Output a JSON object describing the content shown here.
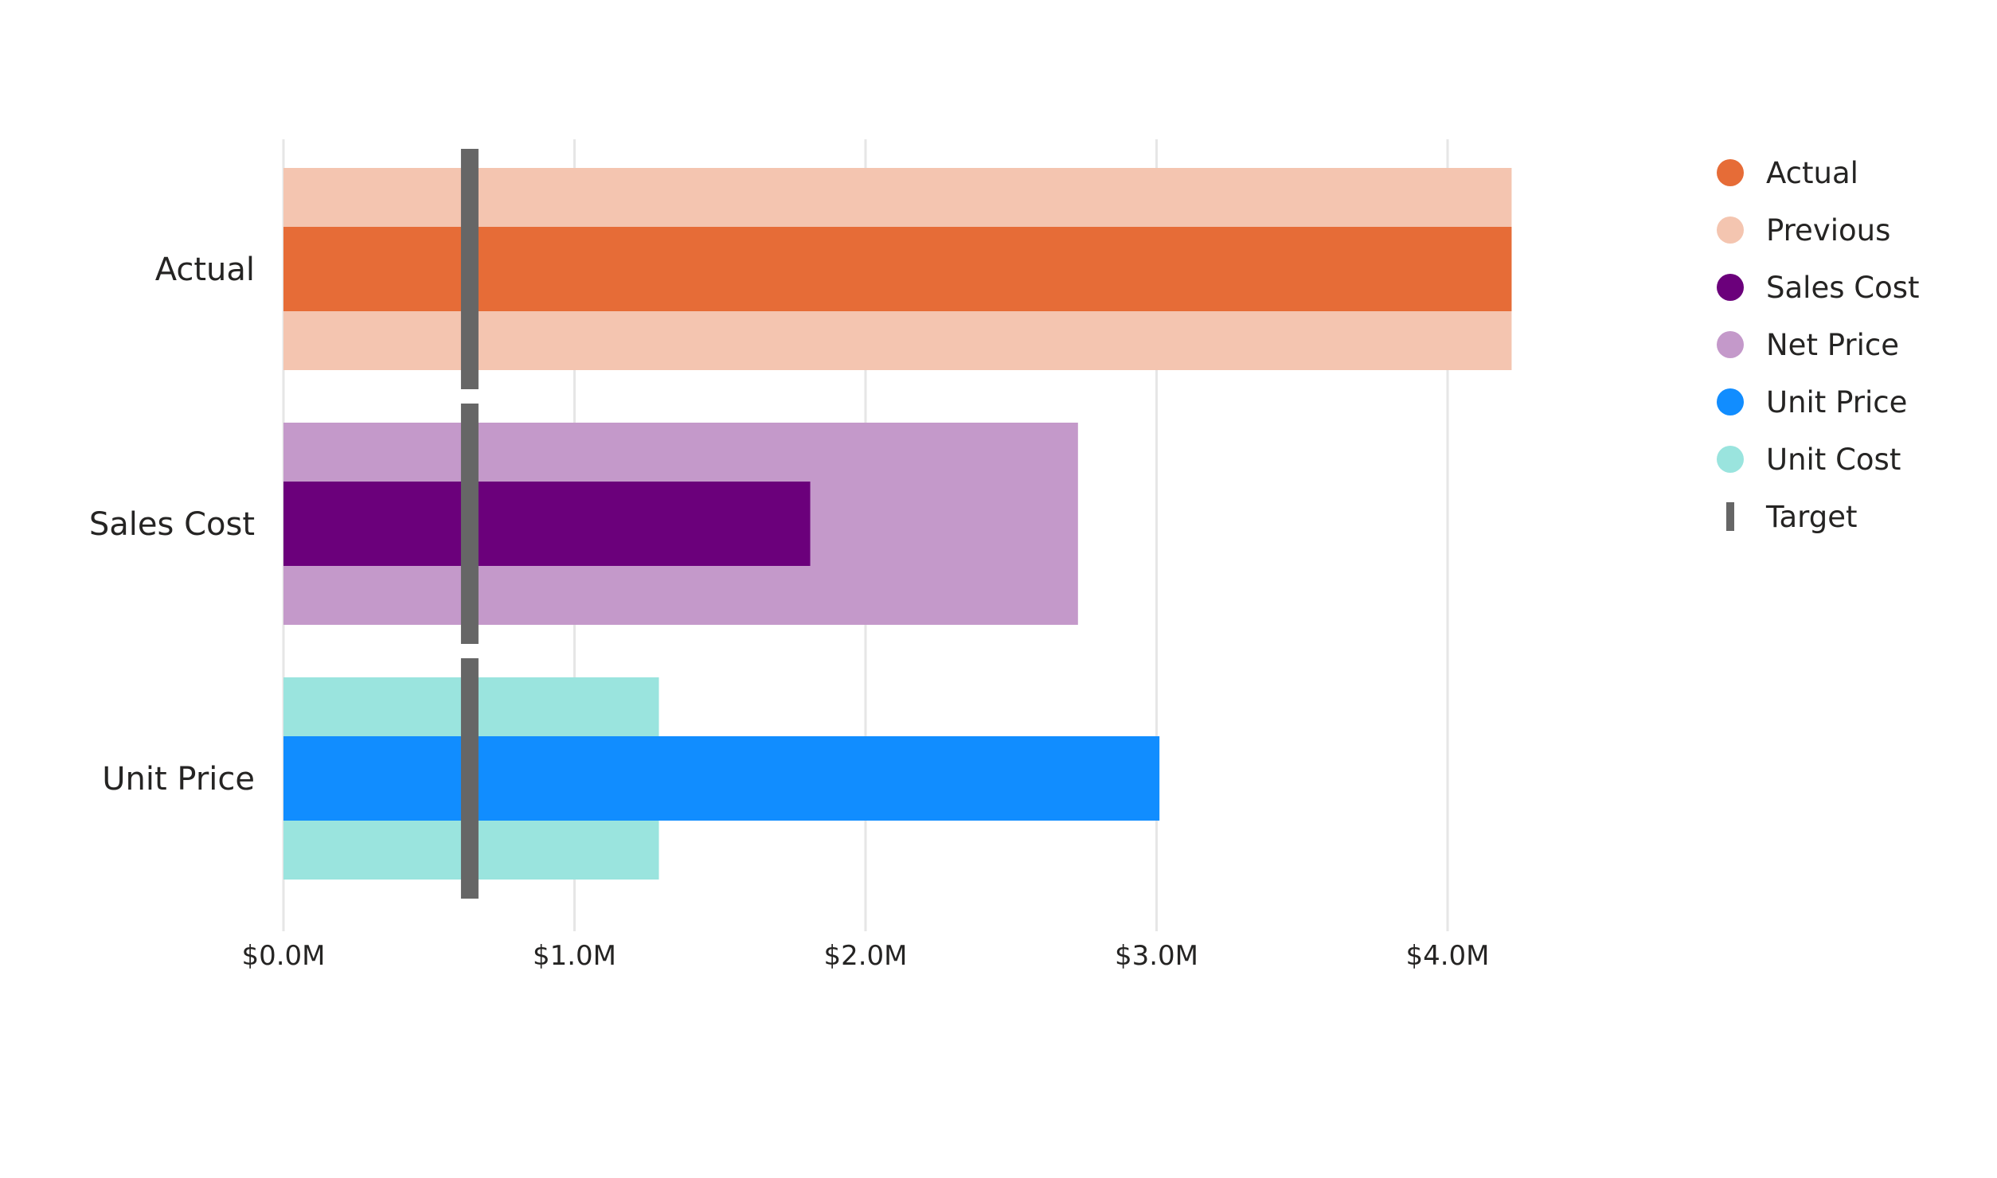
{
  "chart_data": {
    "type": "bar",
    "subtype": "bullet",
    "orientation": "horizontal",
    "title": "",
    "xlabel": "",
    "ylabel": "",
    "xlim": [
      0,
      4.2
    ],
    "x_unit": "$M",
    "x_ticks": [
      "$0.0M",
      "$1.0M",
      "$2.0M",
      "$3.0M",
      "$4.0M"
    ],
    "grid": true,
    "legend_position": "right",
    "categories": [
      "Actual",
      "Sales Cost",
      "Unit Price"
    ],
    "series": [
      {
        "name": "Actual",
        "role": "value",
        "color": "#E66C37",
        "values": [
          4.22,
          null,
          null
        ]
      },
      {
        "name": "Previous",
        "role": "comparison",
        "color": "#F4C5B0",
        "values": [
          4.22,
          null,
          null
        ]
      },
      {
        "name": "Sales Cost",
        "role": "value",
        "color": "#6B007B",
        "values": [
          null,
          1.81,
          null
        ]
      },
      {
        "name": "Net Price",
        "role": "comparison",
        "color": "#C499CA",
        "values": [
          null,
          2.73,
          null
        ]
      },
      {
        "name": "Unit Price",
        "role": "value",
        "color": "#118DFF",
        "values": [
          null,
          null,
          3.01
        ]
      },
      {
        "name": "Unit Cost",
        "role": "comparison",
        "color": "#9AE4DE",
        "values": [
          null,
          null,
          1.29
        ]
      }
    ],
    "target": {
      "name": "Target",
      "color": "#666666",
      "values": [
        0.64,
        0.64,
        0.64
      ]
    },
    "legend": [
      {
        "label": "Actual",
        "color": "#E66C37",
        "marker": "circle"
      },
      {
        "label": "Previous",
        "color": "#F4C5B0",
        "marker": "circle"
      },
      {
        "label": "Sales Cost",
        "color": "#6B007B",
        "marker": "circle"
      },
      {
        "label": "Net Price",
        "color": "#C499CA",
        "marker": "circle"
      },
      {
        "label": "Unit Price",
        "color": "#118DFF",
        "marker": "circle"
      },
      {
        "label": "Unit Cost",
        "color": "#9AE4DE",
        "marker": "circle"
      },
      {
        "label": "Target",
        "color": "#666666",
        "marker": "bar"
      }
    ],
    "gridline_color": "#E6E6E6"
  }
}
